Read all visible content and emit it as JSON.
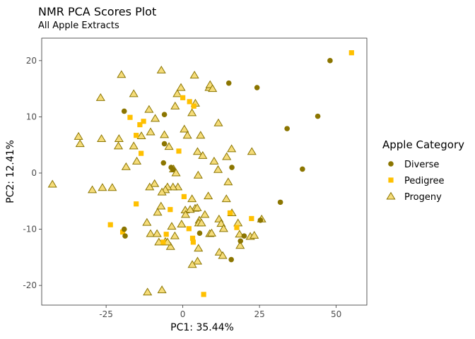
{
  "chart_data": {
    "type": "scatter",
    "title": "NMR PCA Scores Plot",
    "subtitle": "All Apple Extracts",
    "xlabel": "PC1: 35.44%",
    "ylabel": "PC2: 12.41%",
    "xlim": [
      -46,
      60
    ],
    "ylim": [
      -23.5,
      24
    ],
    "xticks": [
      -25,
      0,
      25,
      50
    ],
    "yticks": [
      -20,
      -10,
      0,
      10,
      20
    ],
    "xtick_labels": [
      "-25",
      "0",
      "25",
      "50"
    ],
    "ytick_labels": [
      "-20",
      "-10",
      "0",
      "10",
      "20"
    ],
    "grid": false,
    "legend": {
      "title": "Apple Category",
      "position": "right"
    },
    "series": [
      {
        "name": "Diverse",
        "marker": "circle",
        "color": "#8B7500",
        "points": [
          [
            48.0,
            20.0
          ],
          [
            44.0,
            10.1
          ],
          [
            34.0,
            7.9
          ],
          [
            39.0,
            0.7
          ],
          [
            31.8,
            -5.2
          ],
          [
            25.3,
            -8.4
          ],
          [
            24.2,
            15.2
          ],
          [
            15.0,
            16.0
          ],
          [
            16.0,
            1.0
          ],
          [
            20.0,
            -11.2
          ],
          [
            18.8,
            -12.1
          ],
          [
            15.8,
            -15.4
          ],
          [
            5.5,
            -10.7
          ],
          [
            -6.0,
            10.4
          ],
          [
            -6.0,
            5.2
          ],
          [
            -6.3,
            1.8
          ],
          [
            -3.8,
            1.0
          ],
          [
            -3.2,
            0.6
          ],
          [
            -19.1,
            11.0
          ],
          [
            -19.1,
            -10.0
          ],
          [
            -18.8,
            -11.2
          ]
        ]
      },
      {
        "name": "Pedigree",
        "marker": "square",
        "color": "#FFC000",
        "points": [
          [
            55.0,
            21.4
          ],
          [
            -17.2,
            9.9
          ],
          [
            -15.2,
            6.7
          ],
          [
            -14.0,
            8.6
          ],
          [
            -12.8,
            9.2
          ],
          [
            -13.6,
            3.5
          ],
          [
            -15.2,
            -5.5
          ],
          [
            -19.6,
            -10.5
          ],
          [
            -23.6,
            -9.2
          ],
          [
            -5.4,
            -10.9
          ],
          [
            -6.4,
            -12.3
          ],
          [
            -4.1,
            -6.5
          ],
          [
            0.0,
            13.4
          ],
          [
            2.2,
            12.7
          ],
          [
            3.6,
            11.9
          ],
          [
            -1.3,
            3.9
          ],
          [
            0.4,
            -4.2
          ],
          [
            2.0,
            -9.9
          ],
          [
            3.2,
            -11.6
          ],
          [
            3.4,
            -12.3
          ],
          [
            15.4,
            -7.1
          ],
          [
            17.6,
            -9.7
          ],
          [
            22.4,
            -8.1
          ],
          [
            6.8,
            -21.6
          ]
        ]
      },
      {
        "name": "Progeny",
        "marker": "triangle",
        "color": "#F5DC7A",
        "points": [
          [
            -42.5,
            -2.0
          ],
          [
            -34.0,
            6.5
          ],
          [
            -33.5,
            5.2
          ],
          [
            -29.5,
            -3.0
          ],
          [
            -26.2,
            -2.6
          ],
          [
            -23.0,
            -2.6
          ],
          [
            -26.5,
            6.1
          ],
          [
            -26.8,
            13.4
          ],
          [
            -20.0,
            17.5
          ],
          [
            -21.0,
            4.8
          ],
          [
            -20.8,
            6.1
          ],
          [
            -18.5,
            1.1
          ],
          [
            -16.0,
            4.8
          ],
          [
            -16.0,
            14.1
          ],
          [
            -15.0,
            2.1
          ],
          [
            -13.5,
            6.6
          ],
          [
            -11.0,
            11.3
          ],
          [
            -10.5,
            7.3
          ],
          [
            -9.0,
            9.7
          ],
          [
            -6.0,
            6.8
          ],
          [
            -7.0,
            18.3
          ],
          [
            -4.5,
            4.7
          ],
          [
            -3.0,
            0.7
          ],
          [
            -1.8,
            14.1
          ],
          [
            -0.6,
            15.2
          ],
          [
            0.5,
            7.8
          ],
          [
            1.5,
            6.7
          ],
          [
            3.8,
            17.4
          ],
          [
            4.1,
            12.4
          ],
          [
            3.0,
            10.7
          ],
          [
            -2.5,
            11.9
          ],
          [
            5.8,
            6.7
          ],
          [
            8.6,
            15.2
          ],
          [
            8.9,
            15.7
          ],
          [
            9.7,
            15.0
          ],
          [
            11.6,
            8.9
          ],
          [
            4.8,
            3.8
          ],
          [
            5.0,
            -0.4
          ],
          [
            6.5,
            3.1
          ],
          [
            10.2,
            2.1
          ],
          [
            11.5,
            0.6
          ],
          [
            8.3,
            -4.1
          ],
          [
            7.2,
            -7.4
          ],
          [
            5.4,
            -8.4
          ],
          [
            4.0,
            -6.3
          ],
          [
            3.0,
            -4.6
          ],
          [
            0.8,
            -6.6
          ],
          [
            -1.6,
            -2.5
          ],
          [
            -3.2,
            -2.5
          ],
          [
            -2.2,
            0.0
          ],
          [
            -5.0,
            -2.5
          ],
          [
            -5.7,
            -3.0
          ],
          [
            -6.8,
            -3.4
          ],
          [
            -7.1,
            -5.9
          ],
          [
            -8.2,
            -7.0
          ],
          [
            -9.2,
            -1.9
          ],
          [
            -10.8,
            -2.5
          ],
          [
            -11.7,
            -8.8
          ],
          [
            -10.5,
            -10.8
          ],
          [
            -8.4,
            -10.8
          ],
          [
            -7.8,
            -12.3
          ],
          [
            -5.7,
            -12.2
          ],
          [
            -3.6,
            -9.5
          ],
          [
            -2.6,
            -11.2
          ],
          [
            -0.4,
            -9.1
          ],
          [
            0.9,
            -7.4
          ],
          [
            2.4,
            -6.5
          ],
          [
            4.7,
            -6.2
          ],
          [
            5.2,
            -8.9
          ],
          [
            6.1,
            -8.9
          ],
          [
            8.8,
            -10.8
          ],
          [
            9.4,
            -10.7
          ],
          [
            11.8,
            -8.2
          ],
          [
            12.5,
            -9.0
          ],
          [
            13.3,
            -9.9
          ],
          [
            14.2,
            -4.6
          ],
          [
            14.8,
            -1.6
          ],
          [
            14.3,
            2.9
          ],
          [
            15.9,
            4.3
          ],
          [
            16.0,
            -7.1
          ],
          [
            18.0,
            -8.9
          ],
          [
            18.5,
            -10.9
          ],
          [
            18.7,
            -12.9
          ],
          [
            22.0,
            -11.3
          ],
          [
            23.3,
            -11.1
          ],
          [
            22.5,
            3.8
          ],
          [
            25.7,
            -8.2
          ],
          [
            11.9,
            -14.1
          ],
          [
            13.0,
            -14.7
          ],
          [
            5.1,
            -13.4
          ],
          [
            4.8,
            -15.7
          ],
          [
            3.1,
            -16.3
          ],
          [
            -4.0,
            -13.1
          ],
          [
            -5.0,
            -12.3
          ],
          [
            -11.5,
            -21.2
          ],
          [
            -6.8,
            -20.8
          ]
        ]
      }
    ]
  }
}
